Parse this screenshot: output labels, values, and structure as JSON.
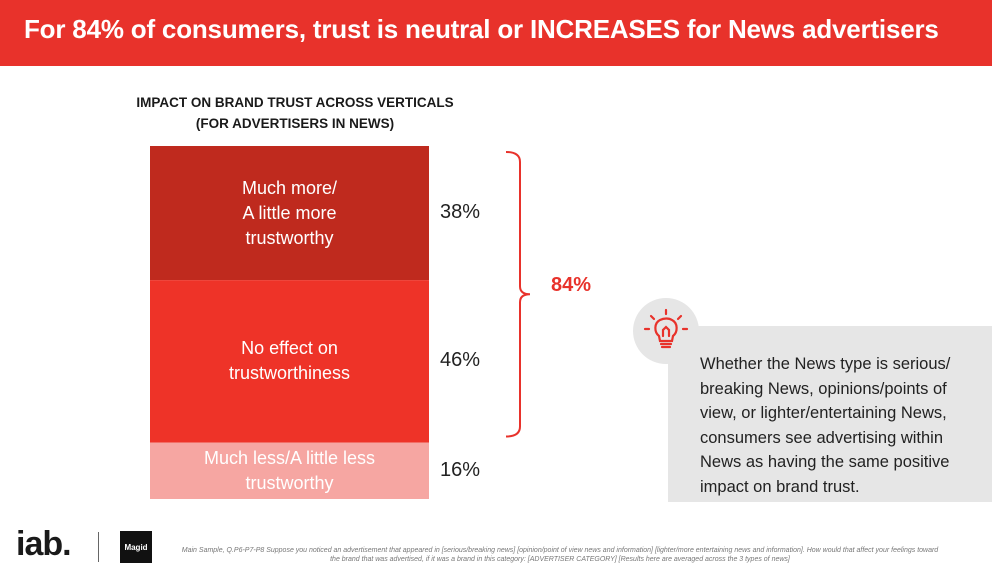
{
  "header": {
    "title": "For 84% of consumers, trust is neutral or INCREASES for News advertisers"
  },
  "chart_data": {
    "type": "bar",
    "stacked": true,
    "orientation": "vertical-stack",
    "title_lines": [
      "IMPACT ON BRAND TRUST ACROSS VERTICALS",
      "(FOR ADVERTISERS IN NEWS)"
    ],
    "categories": [
      "Much more/ A little more trustworthy",
      "No effect on trustworthiness",
      "Much less/A little less trustworthy"
    ],
    "segments": [
      {
        "label_lines": [
          "Much more/",
          "A little more",
          "trustworthy"
        ],
        "value": 38,
        "value_label": "38%",
        "color": "#bf2a1e"
      },
      {
        "label_lines": [
          "No effect on",
          "trustworthiness"
        ],
        "value": 46,
        "value_label": "46%",
        "color": "#ee3328"
      },
      {
        "label_lines": [
          "Much less/A little less",
          "trustworthy"
        ],
        "value": 16,
        "value_label": "16%",
        "color": "#f6a6a2"
      }
    ],
    "bracket": {
      "value_label": "84%",
      "covers": [
        "Much more/ A little more trustworthy",
        "No effect on trustworthiness"
      ],
      "color": "#e8322b"
    }
  },
  "insight": {
    "text": "Whether the News type is serious/ breaking News, opinions/points of view, or lighter/entertaining News, consumers see advertising within News as having the same positive impact on brand trust.",
    "icon": "lightbulb-icon"
  },
  "footer": {
    "logo_iab": "iab.",
    "logo_magid": "Magid",
    "footnote": "Main Sample, Q.P6-P7-P8 Suppose you noticed an advertisement that appeared in [serious/breaking news] [opinion/point of view news and information] [lighter/more entertaining news and information]. How would that affect your feelings toward the brand that was advertised, if it was a brand in this category: [ADVERTISER CATEGORY] [Results here are averaged across the 3 types of news]"
  },
  "colors": {
    "accent": "#e8322b",
    "panel": "#e6e6e6"
  }
}
